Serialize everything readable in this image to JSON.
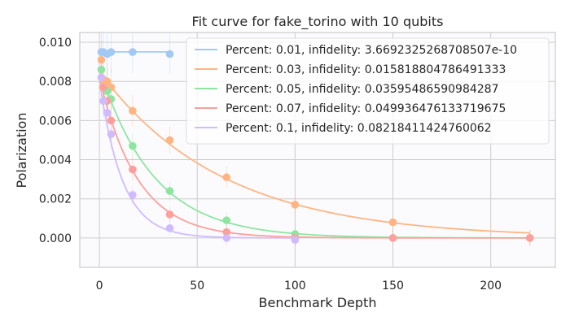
{
  "chart_data": {
    "type": "scatter",
    "title": "Fit curve for fake_torino with 10 qubits",
    "xlabel": "Benchmark Depth",
    "ylabel": "Polarization",
    "xlim": [
      -10,
      233
    ],
    "ylim": [
      -0.0015,
      0.0105
    ],
    "xticks": [
      0,
      50,
      100,
      150,
      200
    ],
    "yticks": [
      0.0,
      0.002,
      0.004,
      0.006,
      0.008,
      0.01
    ],
    "ytick_labels": [
      "0.000",
      "0.002",
      "0.004",
      "0.006",
      "0.008",
      "0.010"
    ],
    "grid": true,
    "legend_position": "top-right",
    "series": [
      {
        "name": "Percent: 0.01, infidelity: 3.6692325268708507e-10",
        "color": "#a1c9f4",
        "fit": {
          "a": 0.00951,
          "decay": 0.999999999
        },
        "points": [
          [
            1,
            0.0095
          ],
          [
            2,
            0.0095
          ],
          [
            4,
            0.0094
          ],
          [
            6,
            0.0095
          ],
          [
            17,
            0.0095
          ],
          [
            36,
            0.0094
          ]
        ]
      },
      {
        "name": "Percent: 0.03, infidelity: 0.015818804786491333",
        "color": "#ffb482",
        "fit": {
          "a": 0.0085,
          "decay": 0.98418
        },
        "points": [
          [
            1,
            0.0091
          ],
          [
            2,
            0.0081
          ],
          [
            4,
            0.008
          ],
          [
            6,
            0.0077
          ],
          [
            17,
            0.0065
          ],
          [
            36,
            0.005
          ],
          [
            65,
            0.0031
          ],
          [
            100,
            0.0017
          ],
          [
            150,
            0.0008
          ],
          [
            220,
            0.0
          ]
        ]
      },
      {
        "name": "Percent: 0.05, infidelity: 0.03595486590984287",
        "color": "#8de5a1",
        "fit": {
          "a": 0.0087,
          "decay": 0.96405
        },
        "points": [
          [
            1,
            0.0086
          ],
          [
            2,
            0.0077
          ],
          [
            4,
            0.0075
          ],
          [
            6,
            0.0071
          ],
          [
            17,
            0.0047
          ],
          [
            36,
            0.0024
          ],
          [
            65,
            0.0009
          ],
          [
            100,
            0.0002
          ],
          [
            150,
            0.0
          ],
          [
            220,
            0.0
          ]
        ]
      },
      {
        "name": "Percent: 0.07, infidelity: 0.049936476133719675",
        "color": "#ff9f9b",
        "fit": {
          "a": 0.0082,
          "decay": 0.95006
        },
        "points": [
          [
            1,
            0.0082
          ],
          [
            2,
            0.0077
          ],
          [
            4,
            0.007
          ],
          [
            6,
            0.006
          ],
          [
            17,
            0.0035
          ],
          [
            36,
            0.0012
          ],
          [
            65,
            0.0003
          ],
          [
            100,
            0.0
          ],
          [
            150,
            0.0
          ],
          [
            220,
            0.0
          ]
        ]
      },
      {
        "name": "Percent: 0.1, infidelity: 0.08218411424760062",
        "color": "#d0bbff",
        "fit": {
          "a": 0.0081,
          "decay": 0.91782
        },
        "points": [
          [
            1,
            0.0082
          ],
          [
            2,
            0.007
          ],
          [
            4,
            0.0064
          ],
          [
            6,
            0.0053
          ],
          [
            17,
            0.0022
          ],
          [
            36,
            0.0005
          ],
          [
            65,
            0.0
          ],
          [
            100,
            -0.0001
          ]
        ]
      }
    ]
  }
}
